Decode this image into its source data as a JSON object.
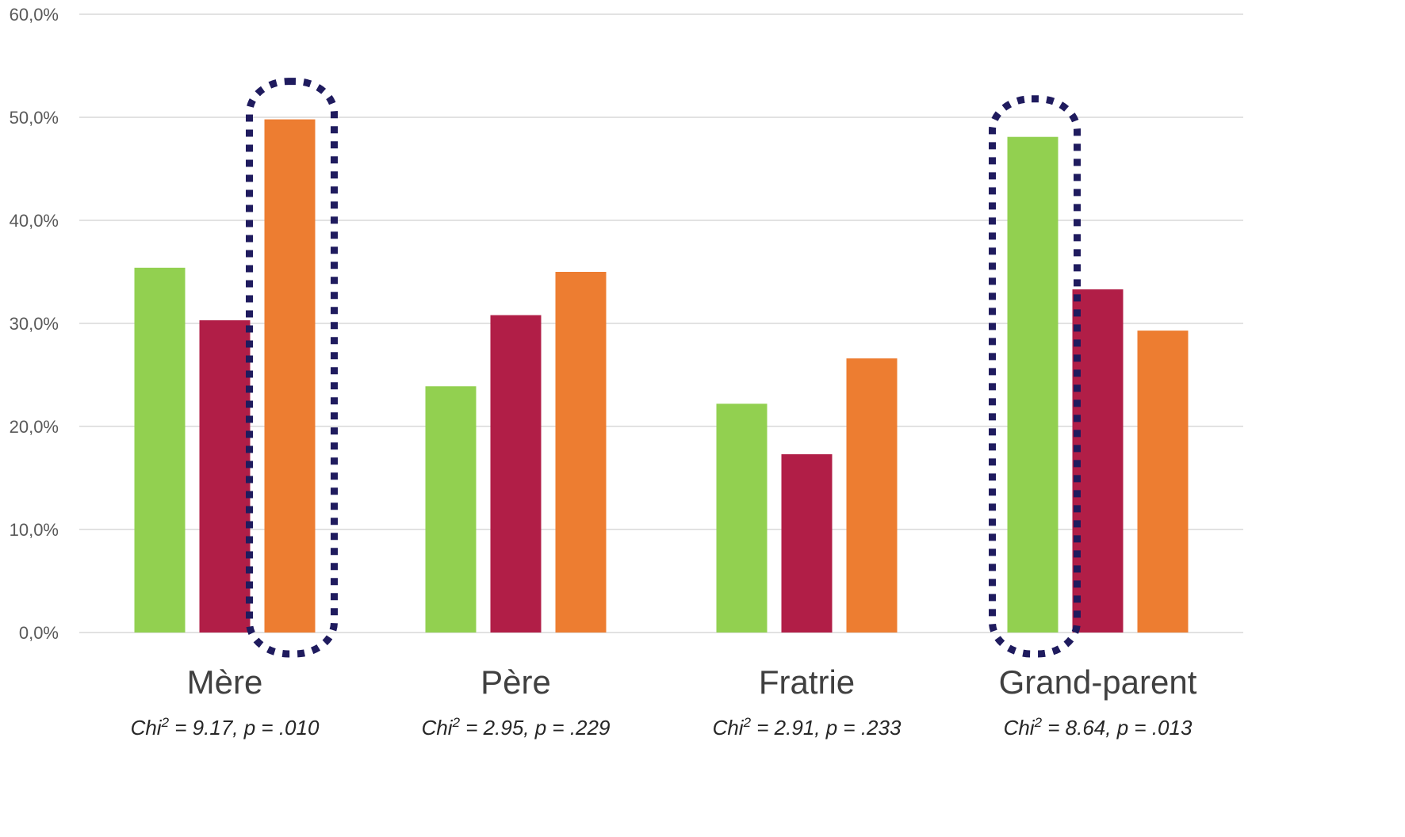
{
  "chart_data": {
    "type": "bar",
    "categories": [
      "Mère",
      "Père",
      "Fratrie",
      "Grand-parent"
    ],
    "colors": [
      "#92d050",
      "#b11e47",
      "#ed7d31"
    ],
    "series": [
      {
        "values": [
          35.4,
          23.9,
          22.2,
          48.1
        ]
      },
      {
        "values": [
          30.3,
          30.8,
          17.3,
          33.3
        ]
      },
      {
        "values": [
          49.8,
          35.0,
          26.6,
          29.3
        ]
      }
    ],
    "ylim": [
      0,
      60
    ],
    "yticks": [
      "0,0%",
      "10,0%",
      "20,0%",
      "30,0%",
      "40,0%",
      "50,0%",
      "60,0%"
    ],
    "grid": true,
    "highlighted": [
      {
        "category": "Mère",
        "series_index": 2
      },
      {
        "category": "Grand-parent",
        "series_index": 0
      }
    ],
    "annotations": [
      {
        "prefix": "Chi",
        "sup": "2",
        "text": " = 9.17, p = .010"
      },
      {
        "prefix": "Chi",
        "sup": "2",
        "text": " = 2.95, p = .229"
      },
      {
        "prefix": "Chi",
        "sup": "2",
        "text": " = 2.91, p = .233"
      },
      {
        "prefix": "Chi",
        "sup": "2",
        "text": " = 8.64, p = .013"
      }
    ]
  }
}
